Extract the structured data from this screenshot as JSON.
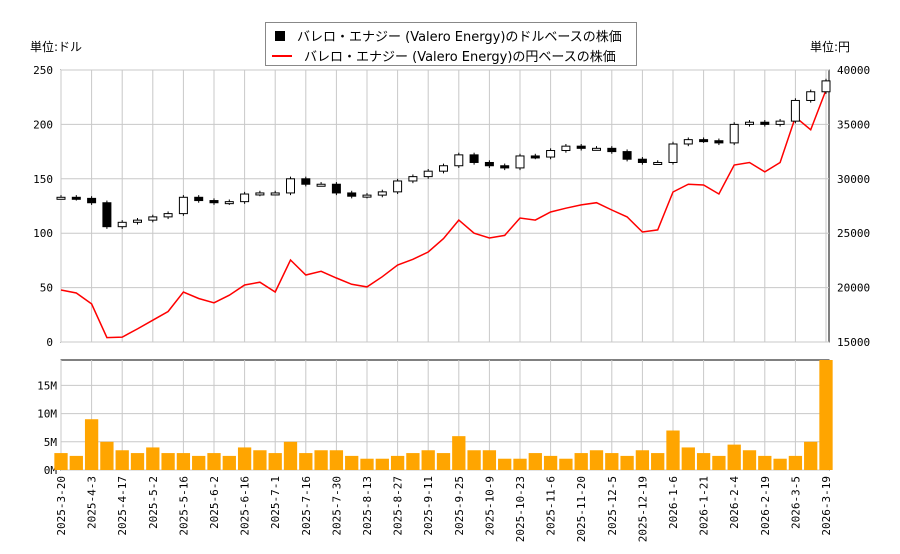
{
  "chart_data": {
    "type": "candlestick+line+bar",
    "legend": {
      "position": "top-center",
      "entries": [
        "バレロ・エナジー (Valero Energy)のドルベースの株価",
        "バレロ・エナジー (Valero Energy)の円ベースの株価"
      ]
    },
    "left_unit_label": "単位:ドル",
    "right_unit_label": "単位:円",
    "colors": {
      "usd": "#000000",
      "jpy": "#ff0000",
      "volume": "#ffa500",
      "grid": "#c8c8c8"
    },
    "grid": true,
    "y_left": {
      "range": [
        0,
        250
      ],
      "ticks": [
        "0",
        "50",
        "100",
        "150",
        "200",
        "250"
      ]
    },
    "y_right": {
      "range": [
        15000,
        40000
      ],
      "ticks": [
        "15000",
        "20000",
        "25000",
        "30000",
        "35000",
        "40000"
      ]
    },
    "y_volume": {
      "range": [
        0,
        19.5
      ],
      "ticks": [
        "0M",
        "5M",
        "10M",
        "15M"
      ]
    },
    "x_tick_labels": [
      "2025-3-20",
      "2025-4-3",
      "2025-4-17",
      "2025-5-2",
      "2025-5-16",
      "2025-6-2",
      "2025-6-16",
      "2025-7-1",
      "2025-7-16",
      "2025-7-30",
      "2025-8-13",
      "2025-8-27",
      "2025-9-11",
      "2025-9-25",
      "2025-10-9",
      "2025-10-23",
      "2025-11-6",
      "2025-11-20",
      "2025-12-5",
      "2025-12-19",
      "2026-1-6",
      "2026-1-21",
      "2026-2-4",
      "2026-2-19",
      "2026-3-5",
      "2026-3-19"
    ],
    "x": [
      "2025-3-20",
      "2025-3-27",
      "2025-4-3",
      "2025-4-10",
      "2025-4-17",
      "2025-4-25",
      "2025-5-2",
      "2025-5-9",
      "2025-5-16",
      "2025-5-23",
      "2025-6-2",
      "2025-6-9",
      "2025-6-16",
      "2025-6-24",
      "2025-7-1",
      "2025-7-9",
      "2025-7-16",
      "2025-7-23",
      "2025-7-30",
      "2025-8-6",
      "2025-8-13",
      "2025-8-20",
      "2025-8-27",
      "2025-9-4",
      "2025-9-11",
      "2025-9-18",
      "2025-9-25",
      "2025-10-2",
      "2025-10-9",
      "2025-10-16",
      "2025-10-23",
      "2025-10-30",
      "2025-11-6",
      "2025-11-13",
      "2025-11-20",
      "2025-11-28",
      "2025-12-5",
      "2025-12-12",
      "2025-12-19",
      "2025-12-29",
      "2026-1-6",
      "2026-1-13",
      "2026-1-21",
      "2026-1-28",
      "2026-2-4",
      "2026-2-11",
      "2026-2-19",
      "2026-2-26",
      "2026-3-5",
      "2026-3-12",
      "2026-3-19"
    ],
    "series": [
      {
        "name": "バレロ・エナジー (Valero Energy)のドルベースの株価",
        "axis": "left",
        "values": [
          133,
          132,
          128,
          106,
          110,
          112,
          115,
          118,
          133,
          130,
          128,
          129,
          136,
          137,
          137,
          150,
          145,
          145,
          137,
          134,
          135,
          138,
          148,
          152,
          157,
          162,
          172,
          165,
          162,
          160,
          171,
          170,
          176,
          180,
          178,
          178,
          175,
          168,
          165,
          165,
          182,
          186,
          185,
          183,
          200,
          202,
          200,
          203,
          222,
          230,
          240
        ]
      },
      {
        "name": "バレロ・エナジー (Valero Energy)の円ベースの株価",
        "axis": "right",
        "values": [
          19780,
          19500,
          18500,
          15400,
          15450,
          16200,
          17000,
          17800,
          19600,
          19000,
          18600,
          19300,
          20240,
          20500,
          19600,
          22540,
          21160,
          21500,
          20880,
          20300,
          20060,
          21000,
          22080,
          22600,
          23270,
          24500,
          26200,
          25000,
          24560,
          24800,
          26400,
          26200,
          26950,
          27300,
          27600,
          27800,
          27130,
          26500,
          25110,
          25300,
          28790,
          29500,
          29430,
          28600,
          31270,
          31500,
          30630,
          31500,
          35680,
          34500,
          38160
        ]
      },
      {
        "axis": "volume",
        "unit": "M",
        "values": [
          3,
          2.5,
          9,
          5,
          3.5,
          3,
          4,
          3,
          3,
          2.5,
          3,
          2.5,
          4,
          3.5,
          3,
          5,
          3,
          3.5,
          3.5,
          2.5,
          2,
          2,
          2.5,
          3,
          3.5,
          3,
          6,
          3.5,
          3.5,
          2,
          2,
          3,
          2.5,
          2,
          3,
          3.5,
          3,
          2.5,
          3.5,
          3,
          7,
          4,
          3,
          2.5,
          4.5,
          3.5,
          2.5,
          2,
          2.5,
          5,
          19.5
        ]
      }
    ]
  }
}
